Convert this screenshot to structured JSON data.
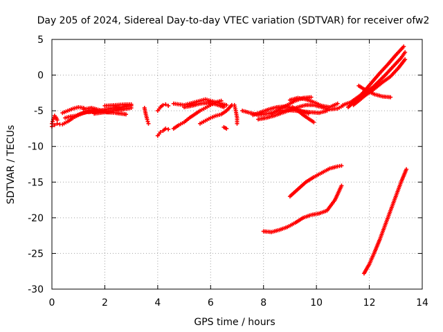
{
  "chart_data": {
    "type": "scatter",
    "title": "Day 205 of 2024, Sidereal Day-to-day VTEC variation (SDTVAR) for receiver ofw2",
    "xlabel": "GPS time / hours",
    "ylabel": "SDTVAR / TECUs",
    "xlim": [
      0,
      14
    ],
    "ylim": [
      -30,
      5
    ],
    "xticks": [
      0,
      2,
      4,
      6,
      8,
      10,
      12,
      14
    ],
    "yticks": [
      5,
      0,
      -5,
      -10,
      -15,
      -20,
      -25,
      -30
    ],
    "grid": true,
    "marker": "+",
    "color": "#ff0000",
    "series": [
      {
        "x": [
          0.0,
          0.05,
          0.1,
          0.15,
          0.2
        ],
        "y": [
          -6.8,
          -6.2,
          -5.7,
          -5.9,
          -6.3
        ]
      },
      {
        "x": [
          0.0,
          0.1,
          0.2,
          0.3
        ],
        "y": [
          -7.2,
          -7.0,
          -6.8,
          -6.9
        ]
      },
      {
        "x": [
          0.4,
          0.6,
          0.8,
          1.0,
          1.2
        ],
        "y": [
          -5.3,
          -5.0,
          -4.7,
          -4.5,
          -4.6
        ]
      },
      {
        "x": [
          0.4,
          0.6,
          0.8,
          1.0,
          1.2,
          1.4
        ],
        "y": [
          -6.9,
          -6.5,
          -6.0,
          -5.6,
          -5.3,
          -5.1
        ]
      },
      {
        "x": [
          0.5,
          0.7,
          0.9,
          1.1,
          1.3,
          1.6,
          1.9
        ],
        "y": [
          -6.0,
          -5.8,
          -5.7,
          -5.4,
          -5.2,
          -5.0,
          -5.1
        ]
      },
      {
        "x": [
          1.2,
          1.5,
          1.8,
          2.1,
          2.4,
          2.7,
          3.0
        ],
        "y": [
          -4.8,
          -4.6,
          -4.9,
          -5.2,
          -5.0,
          -4.8,
          -4.6
        ]
      },
      {
        "x": [
          1.4,
          1.8,
          2.2,
          2.6,
          3.0
        ],
        "y": [
          -5.2,
          -5.0,
          -4.7,
          -4.5,
          -4.3
        ]
      },
      {
        "x": [
          1.6,
          2.0,
          2.4,
          2.8
        ],
        "y": [
          -5.4,
          -5.2,
          -5.3,
          -5.5
        ]
      },
      {
        "x": [
          2.0,
          2.4,
          2.8,
          3.0
        ],
        "y": [
          -4.3,
          -4.2,
          -4.1,
          -4.1
        ]
      },
      {
        "x": [
          3.5,
          3.55,
          3.6,
          3.65
        ],
        "y": [
          -4.6,
          -5.5,
          -6.2,
          -6.8
        ]
      },
      {
        "x": [
          4.0,
          4.1,
          4.2,
          4.3,
          4.4
        ],
        "y": [
          -8.5,
          -8.0,
          -7.8,
          -7.5,
          -7.6
        ]
      },
      {
        "x": [
          4.0,
          4.1,
          4.2,
          4.3,
          4.4
        ],
        "y": [
          -5.0,
          -4.5,
          -4.2,
          -4.1,
          -4.3
        ]
      },
      {
        "x": [
          4.6,
          4.8,
          5.0,
          5.2,
          5.4,
          5.6,
          5.8,
          6.0,
          6.2,
          6.4,
          6.6
        ],
        "y": [
          -4.0,
          -4.1,
          -4.2,
          -4.0,
          -3.8,
          -3.6,
          -3.4,
          -3.6,
          -3.8,
          -4.0,
          -4.2
        ]
      },
      {
        "x": [
          4.6,
          4.8,
          5.0,
          5.2,
          5.4,
          5.6,
          5.8,
          6.0,
          6.2,
          6.4
        ],
        "y": [
          -7.5,
          -7.0,
          -6.6,
          -6.0,
          -5.5,
          -5.0,
          -4.6,
          -4.2,
          -3.8,
          -3.6
        ]
      },
      {
        "x": [
          5.0,
          5.3,
          5.6,
          5.9,
          6.2,
          6.5
        ],
        "y": [
          -4.5,
          -4.3,
          -4.0,
          -3.9,
          -4.1,
          -4.5
        ]
      },
      {
        "x": [
          5.6,
          5.8,
          6.0,
          6.2,
          6.4,
          6.6,
          6.8
        ],
        "y": [
          -6.8,
          -6.4,
          -6.0,
          -5.7,
          -5.5,
          -5.0,
          -4.2
        ]
      },
      {
        "x": [
          6.5,
          6.55,
          6.6
        ],
        "y": [
          -7.3,
          -7.4,
          -7.5
        ]
      },
      {
        "x": [
          6.9,
          6.95,
          7.0,
          7.0
        ],
        "y": [
          -4.2,
          -5.0,
          -6.0,
          -6.8
        ]
      },
      {
        "x": [
          7.2,
          7.5,
          7.8,
          8.0,
          8.3,
          8.6,
          8.9,
          9.2,
          9.5,
          9.8,
          10.1,
          10.4
        ],
        "y": [
          -5.0,
          -5.3,
          -5.6,
          -5.5,
          -5.3,
          -5.0,
          -4.9,
          -5.0,
          -5.1,
          -5.2,
          -5.3,
          -5.0
        ]
      },
      {
        "x": [
          7.6,
          7.9,
          8.2,
          8.5,
          8.8,
          9.1,
          9.4,
          9.7
        ],
        "y": [
          -5.6,
          -5.2,
          -4.8,
          -4.5,
          -4.4,
          -4.6,
          -5.0,
          -5.4
        ]
      },
      {
        "x": [
          7.8,
          8.1,
          8.4,
          8.7,
          9.0,
          9.3,
          9.6,
          9.9,
          10.2,
          10.5,
          10.8,
          11.0
        ],
        "y": [
          -6.2,
          -6.0,
          -5.7,
          -5.3,
          -4.9,
          -4.5,
          -4.2,
          -4.2,
          -4.5,
          -4.8,
          -4.7,
          -4.3
        ]
      },
      {
        "x": [
          8.3,
          8.6,
          8.9,
          9.2,
          9.5,
          9.8
        ],
        "y": [
          -5.4,
          -4.8,
          -4.2,
          -3.6,
          -3.2,
          -3.1
        ]
      },
      {
        "x": [
          9.0,
          9.3,
          9.6,
          9.9,
          10.2,
          10.5,
          10.8
        ],
        "y": [
          -3.5,
          -3.2,
          -3.4,
          -3.8,
          -4.3,
          -4.5,
          -4.0
        ]
      },
      {
        "x": [
          9.1,
          9.3,
          9.5,
          9.7,
          9.9
        ],
        "y": [
          -4.5,
          -5.0,
          -5.6,
          -6.1,
          -6.6
        ]
      },
      {
        "x": [
          11.2,
          11.5,
          11.8,
          12.1,
          12.4,
          12.7,
          13.0,
          13.3
        ],
        "y": [
          -4.5,
          -3.5,
          -2.3,
          -1.0,
          0.3,
          1.5,
          2.8,
          4.0
        ]
      },
      {
        "x": [
          11.4,
          11.7,
          12.0,
          12.3,
          12.6,
          12.9,
          13.2,
          13.35
        ],
        "y": [
          -4.2,
          -3.3,
          -2.2,
          -1.1,
          0.0,
          1.2,
          2.4,
          3.2
        ]
      },
      {
        "x": [
          11.6,
          11.9,
          12.2,
          12.5,
          12.8,
          13.1,
          13.35
        ],
        "y": [
          -3.5,
          -2.7,
          -1.9,
          -1.0,
          -0.2,
          1.0,
          2.2
        ]
      },
      {
        "x": [
          11.6,
          11.9,
          12.2,
          12.5,
          12.8
        ],
        "y": [
          -1.5,
          -2.2,
          -2.7,
          -3.0,
          -3.1
        ]
      },
      {
        "x": [
          11.0,
          11.3,
          11.6,
          11.9,
          12.1
        ],
        "y": [
          -4.2,
          -3.8,
          -3.0,
          -2.3,
          -1.8
        ]
      },
      {
        "x": [
          11.8,
          12.0,
          12.2,
          12.4,
          12.6,
          12.8,
          13.0,
          13.2,
          13.4
        ],
        "y": [
          -27.8,
          -26.5,
          -24.8,
          -23.0,
          -21.0,
          -19.0,
          -17.0,
          -15.0,
          -13.2
        ]
      },
      {
        "x": [
          9.0,
          9.3,
          9.6,
          9.9,
          10.2,
          10.5,
          10.8,
          10.95
        ],
        "y": [
          -17.0,
          -16.0,
          -15.0,
          -14.3,
          -13.7,
          -13.1,
          -12.8,
          -12.7
        ]
      },
      {
        "x": [
          8.0,
          8.3,
          8.6,
          8.9,
          9.2,
          9.5,
          9.8,
          10.1,
          10.4,
          10.7,
          10.95
        ],
        "y": [
          -21.9,
          -22.0,
          -21.7,
          -21.3,
          -20.7,
          -20.0,
          -19.6,
          -19.4,
          -19.0,
          -17.5,
          -15.5
        ]
      }
    ]
  }
}
